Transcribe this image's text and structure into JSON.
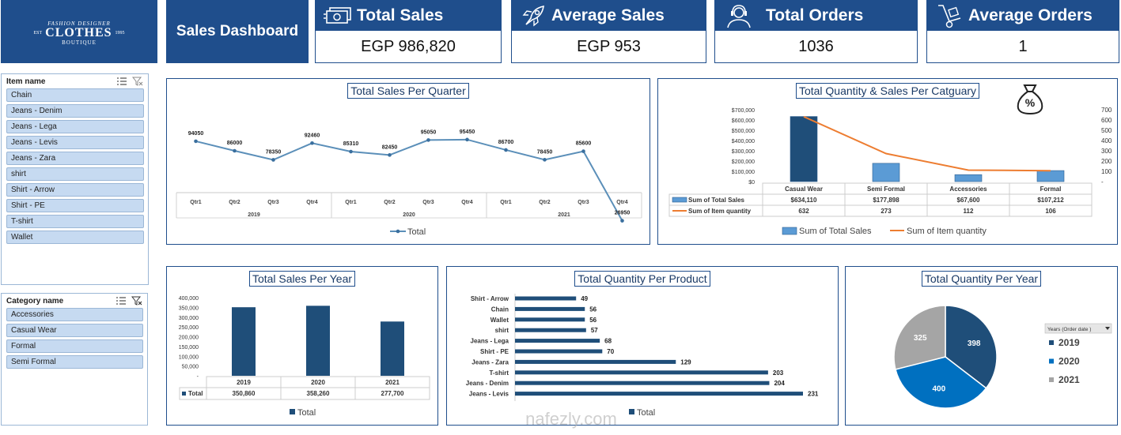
{
  "logo": {
    "line1": "FASHION DESIGNER",
    "est": "EST",
    "brand": "CLOTHES",
    "year": "1995",
    "line3": "BOUTIQUE"
  },
  "dashboard_title": "Sales Dashboard",
  "kpis": [
    {
      "label": "Total Sales",
      "value": "EGP 986,820",
      "icon": "money-icon"
    },
    {
      "label": "Average Sales",
      "value": "EGP 953",
      "icon": "rocket-icon"
    },
    {
      "label": "Total Orders",
      "value": "1036",
      "icon": "headset-icon"
    },
    {
      "label": "Average Orders",
      "value": "1",
      "icon": "hand-truck-icon"
    }
  ],
  "item_slicer": {
    "title": "Item name",
    "items": [
      "Chain",
      "Jeans - Denim",
      "Jeans - Lega",
      "Jeans - Levis",
      "Jeans - Zara",
      "shirt",
      "Shirt - Arrow",
      "Shirt - PE",
      "T-shirt",
      "Wallet"
    ]
  },
  "category_slicer": {
    "title": "Category name",
    "items": [
      "Accessories",
      "Casual Wear",
      "Formal",
      "Semi Formal"
    ]
  },
  "colors": {
    "primary": "#1f4e8c",
    "bar": "#1f4e79",
    "bar_light": "#5b9bd5",
    "line": "#5b8fb9",
    "orange": "#ed7d31",
    "pie_2019": "#1f4e79",
    "pie_2020": "#0070c0",
    "pie_2021": "#a5a5a5"
  },
  "chart_data": [
    {
      "id": "quarter",
      "type": "line",
      "title": "Total Sales Per Quarter",
      "quarters": [
        "Qtr1",
        "Qtr2",
        "Qtr3",
        "Qtr4",
        "Qtr1",
        "Qtr2",
        "Qtr3",
        "Qtr4",
        "Qtr1",
        "Qtr2",
        "Qtr3",
        "Qtr4"
      ],
      "years": [
        "2019",
        "2020",
        "2021"
      ],
      "series": [
        {
          "name": "Total",
          "values": [
            94050,
            86000,
            78350,
            92460,
            85310,
            82450,
            95050,
            95450,
            86700,
            78450,
            85600,
            26950
          ]
        }
      ],
      "data_labels": [
        "94050",
        "86000",
        "78350",
        "92460",
        "85310",
        "82450",
        "95050",
        "95450",
        "86700",
        "78450",
        "85600",
        "26950"
      ]
    },
    {
      "id": "category",
      "type": "bar",
      "title": "Total Quantity & Sales Per Catguary",
      "categories": [
        "Casual Wear",
        "Semi Formal",
        "Accessories",
        "Formal"
      ],
      "series": [
        {
          "name": "Sum of Total Sales",
          "values": [
            634110,
            177898,
            67600,
            107212
          ]
        },
        {
          "name": "Sum of Item quantity",
          "values": [
            632,
            273,
            112,
            106
          ]
        }
      ],
      "table": [
        [
          "$634,110",
          "$177,898",
          "$67,600",
          "$107,212"
        ],
        [
          "632",
          "273",
          "112",
          "106"
        ]
      ],
      "y_ticks": [
        "$700,000",
        "$600,000",
        "$500,000",
        "$400,000",
        "$300,000",
        "$200,000",
        "$100,000",
        "$0"
      ],
      "y2_ticks": [
        "700",
        "600",
        "500",
        "400",
        "300",
        "200",
        "100",
        "-"
      ],
      "ylim": [
        0,
        700000
      ],
      "y2lim": [
        0,
        700
      ]
    },
    {
      "id": "year",
      "type": "bar",
      "title": "Total Sales Per Year",
      "categories": [
        "2019",
        "2020",
        "2021"
      ],
      "series": [
        {
          "name": "Total",
          "values": [
            350860,
            358260,
            277700
          ]
        }
      ],
      "table_values": [
        "350,860",
        "358,260",
        "277,700"
      ],
      "y_ticks": [
        "400,000",
        "350,000",
        "300,000",
        "250,000",
        "200,000",
        "150,000",
        "100,000",
        "50,000",
        "-"
      ],
      "ylim": [
        0,
        400000
      ]
    },
    {
      "id": "product",
      "type": "bar",
      "orientation": "horizontal",
      "title": "Total Quantity Per Product",
      "categories": [
        "Shirt - Arrow",
        "Chain",
        "Wallet",
        "shirt",
        "Jeans - Lega",
        "Shirt - PE",
        "Jeans - Zara",
        "T-shirt",
        "Jeans - Denim",
        "Jeans - Levis"
      ],
      "series": [
        {
          "name": "Total",
          "values": [
            49,
            56,
            56,
            57,
            68,
            70,
            129,
            203,
            204,
            231
          ]
        }
      ],
      "data_labels": [
        "49",
        "56",
        "56",
        "57",
        "68",
        "70",
        "129",
        "203",
        "204",
        "231"
      ]
    },
    {
      "id": "pie",
      "type": "pie",
      "title": "Total Quantity Per Year",
      "categories": [
        "2019",
        "2020",
        "2021"
      ],
      "values": [
        398,
        400,
        325
      ],
      "data_labels": [
        "398",
        "400",
        "325"
      ],
      "legend_header": "Years (Order date )"
    }
  ],
  "watermark": "nafezly.com"
}
